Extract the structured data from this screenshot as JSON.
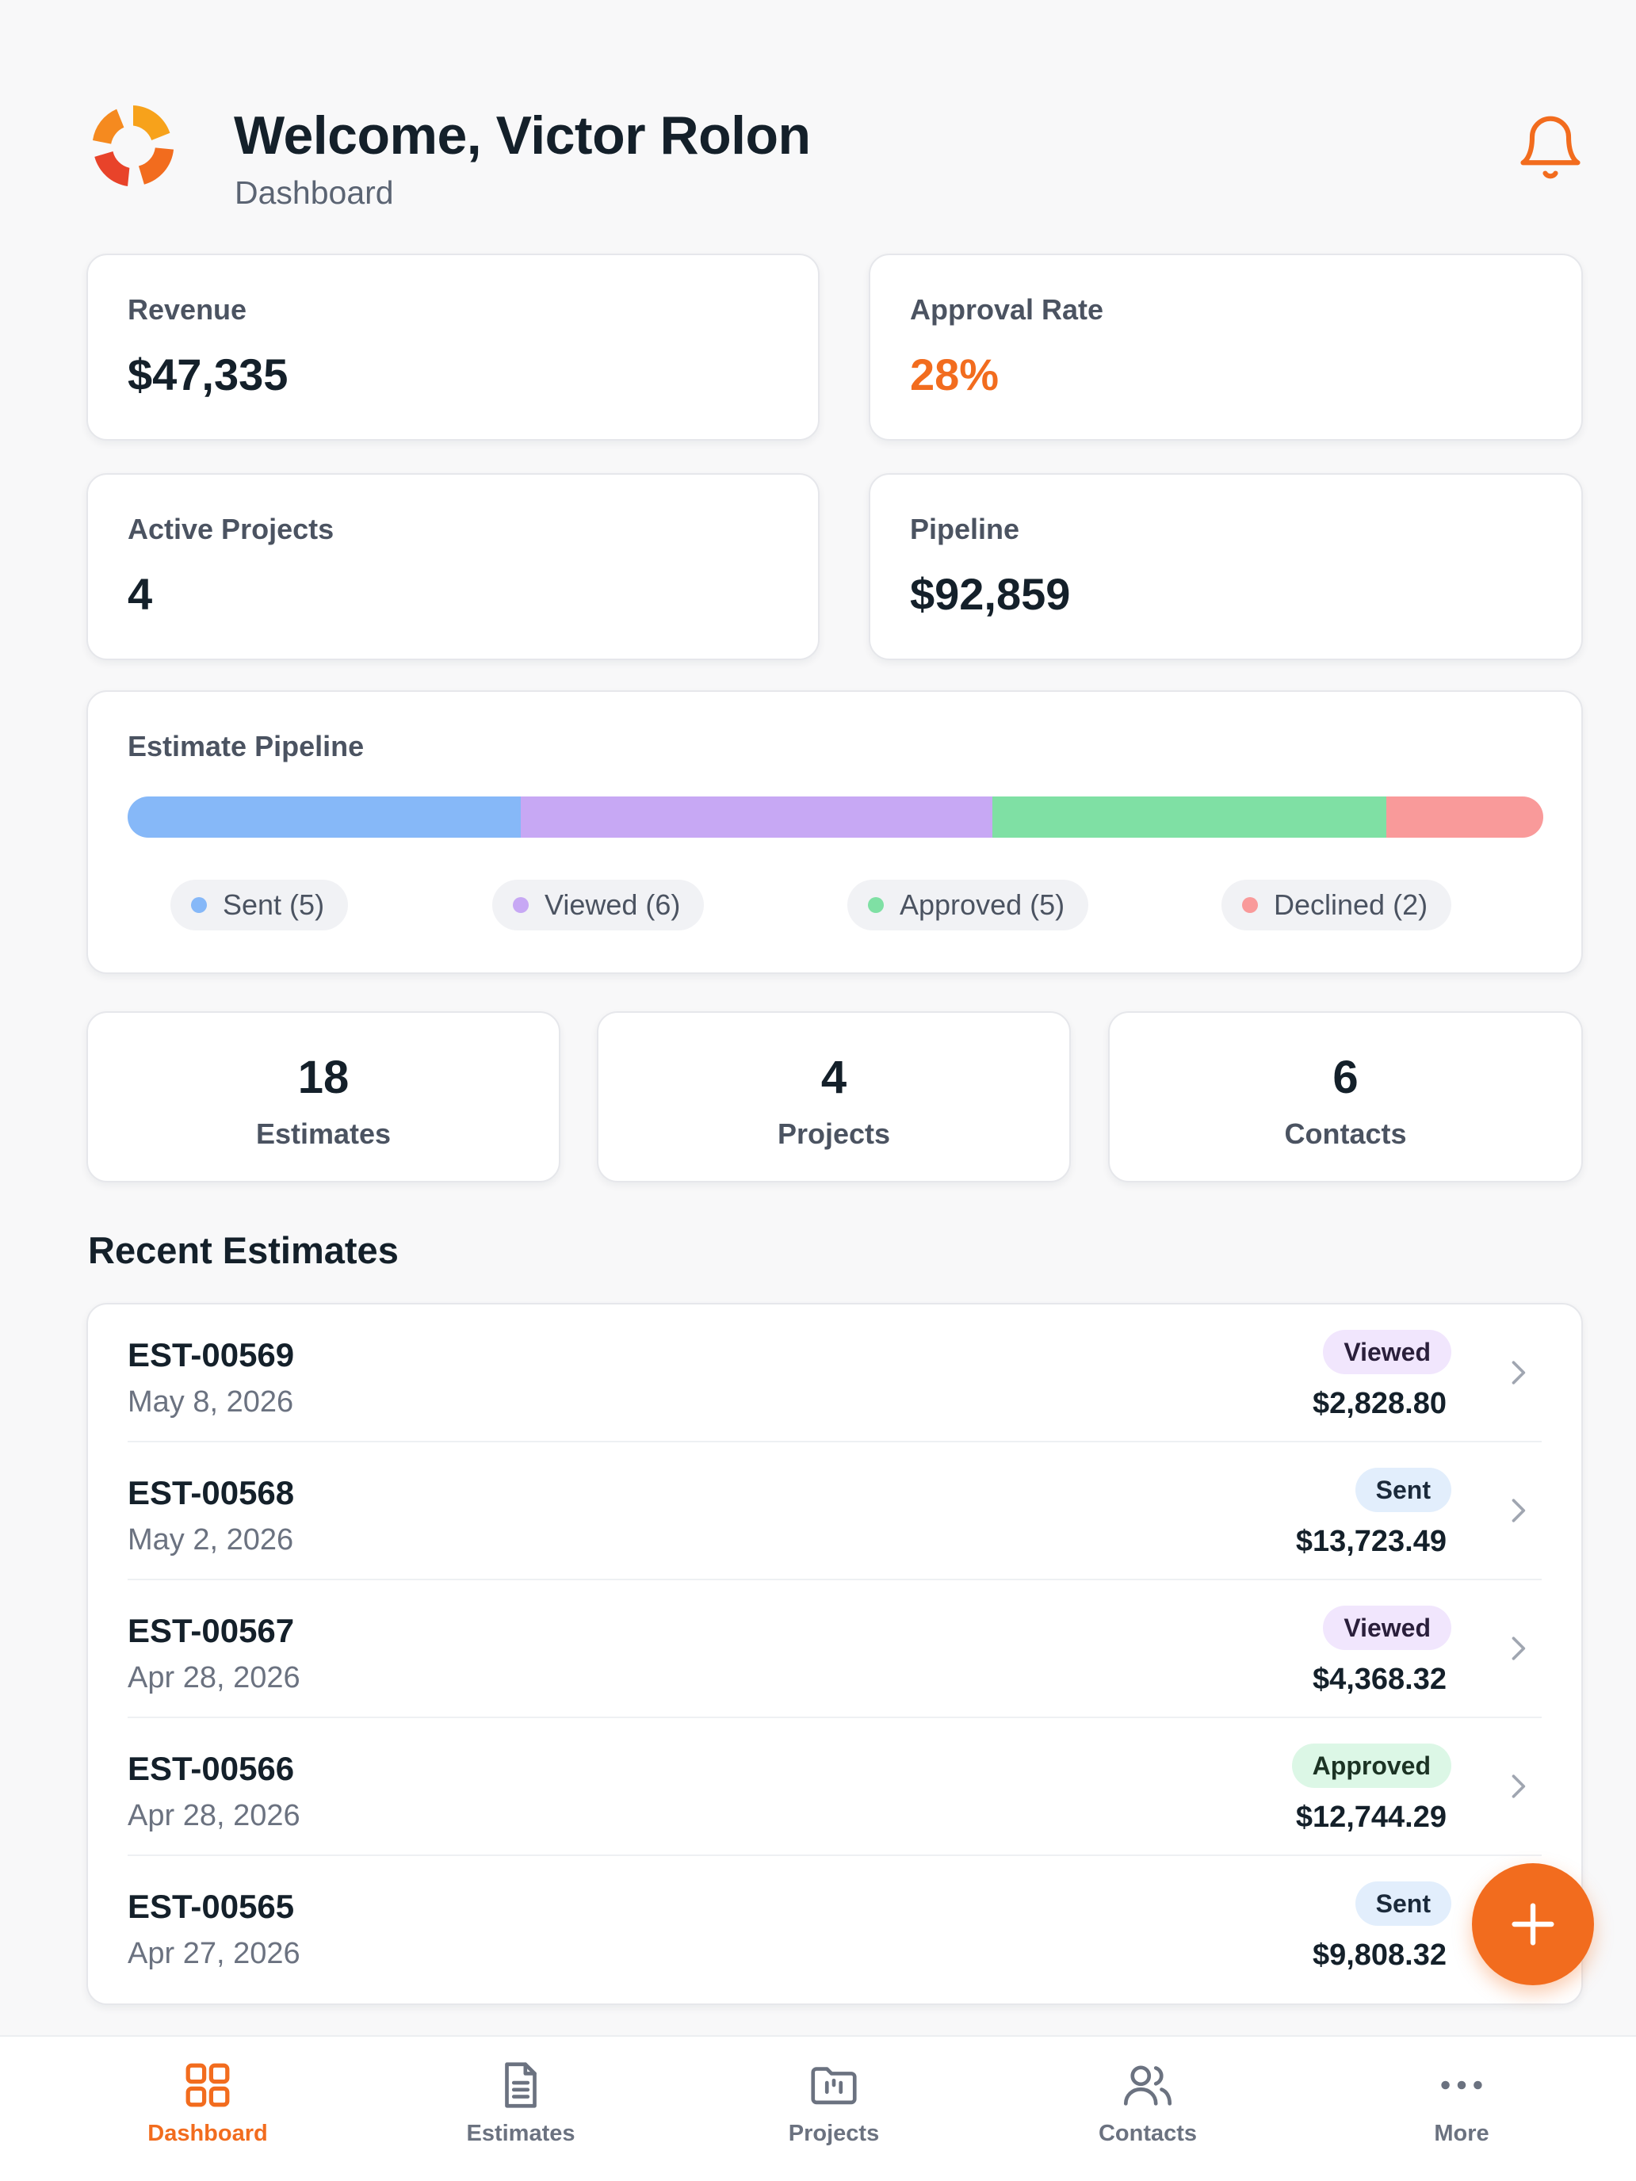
{
  "header": {
    "welcome": "Welcome, Victor Rolon",
    "subtitle": "Dashboard",
    "logo_icon": "brand-swirl-logo",
    "bell_icon": "bell-icon"
  },
  "stats": {
    "revenue": {
      "label": "Revenue",
      "value": "$47,335"
    },
    "approval_rate": {
      "label": "Approval Rate",
      "value": "28%"
    },
    "active_projects": {
      "label": "Active Projects",
      "value": "4"
    },
    "pipeline": {
      "label": "Pipeline",
      "value": "$92,859"
    }
  },
  "estimate_pipeline": {
    "title": "Estimate Pipeline",
    "segments": [
      {
        "label": "Sent (5)",
        "count": 5,
        "color": "#86b8f8"
      },
      {
        "label": "Viewed (6)",
        "count": 6,
        "color": "#c7a8f4"
      },
      {
        "label": "Approved (5)",
        "count": 5,
        "color": "#7fe0a4"
      },
      {
        "label": "Declined (2)",
        "count": 2,
        "color": "#f99a9a"
      }
    ]
  },
  "counts": [
    {
      "value": "18",
      "label": "Estimates"
    },
    {
      "value": "4",
      "label": "Projects"
    },
    {
      "value": "6",
      "label": "Contacts"
    }
  ],
  "recent": {
    "title": "Recent Estimates",
    "rows": [
      {
        "id": "EST-00569",
        "date": "May 8, 2026",
        "status": "Viewed",
        "amount": "$2,828.80"
      },
      {
        "id": "EST-00568",
        "date": "May 2, 2026",
        "status": "Sent",
        "amount": "$13,723.49"
      },
      {
        "id": "EST-00567",
        "date": "Apr 28, 2026",
        "status": "Viewed",
        "amount": "$4,368.32"
      },
      {
        "id": "EST-00566",
        "date": "Apr 28, 2026",
        "status": "Approved",
        "amount": "$12,744.29"
      },
      {
        "id": "EST-00565",
        "date": "Apr 27, 2026",
        "status": "Sent",
        "amount": "$9,808.32"
      }
    ]
  },
  "status_colors": {
    "Viewed": {
      "bg": "#f1e6fd",
      "fg": "#2a1f3b"
    },
    "Sent": {
      "bg": "#e2eefc",
      "fg": "#1b2a3b"
    },
    "Approved": {
      "bg": "#dcf7e6",
      "fg": "#1c3324"
    }
  },
  "fab": {
    "icon": "plus-icon"
  },
  "tabs": [
    {
      "label": "Dashboard",
      "icon": "grid-icon",
      "active": true
    },
    {
      "label": "Estimates",
      "icon": "document-icon",
      "active": false
    },
    {
      "label": "Projects",
      "icon": "folder-icon",
      "active": false
    },
    {
      "label": "Contacts",
      "icon": "users-icon",
      "active": false
    },
    {
      "label": "More",
      "icon": "more-dots-icon",
      "active": false
    }
  ],
  "accent_color": "#f26c1e"
}
